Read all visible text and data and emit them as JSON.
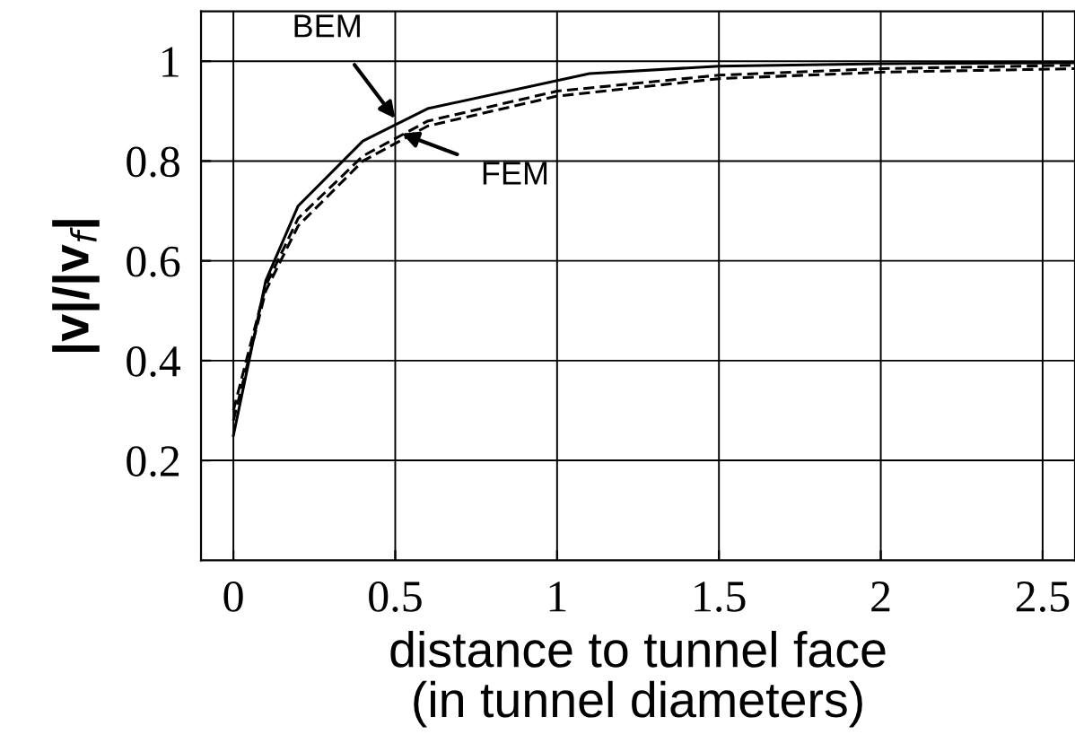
{
  "chart_data": {
    "type": "line",
    "xlabel": "distance to tunnel face\n(in tunnel diameters)",
    "ylabel": "|v|/|v$_{f}$|",
    "series": [
      {
        "color": "#000000",
        "line_style": "solid",
        "x": [
          0,
          0.1,
          0.2,
          0.4,
          0.6,
          1.1,
          1.5,
          2,
          2.6
        ],
        "values": [
          0.25,
          0.56,
          0.71,
          0.84,
          0.905,
          0.975,
          0.99,
          0.995,
          0.997
        ]
      },
      {
        "color": "#000000",
        "line_style": "dashed",
        "x": [
          0,
          0.1,
          0.2,
          0.4,
          0.6,
          1,
          1.5,
          2,
          2.6
        ],
        "values": [
          0.28,
          0.54,
          0.67,
          0.8,
          0.87,
          0.93,
          0.965,
          0.978,
          0.985
        ]
      },
      {
        "color": "#000000",
        "line_style": "dashed",
        "x": [
          0,
          0.1,
          0.2,
          0.4,
          0.6,
          1,
          1.5,
          2,
          2.6
        ],
        "values": [
          0.3,
          0.55,
          0.685,
          0.81,
          0.88,
          0.94,
          0.972,
          0.985,
          0.992
        ]
      }
    ],
    "annotations": [
      {
        "text": "BEM",
        "x": 0.5,
        "y": 0.885
      },
      {
        "text": "FEM",
        "x": 0.52,
        "y": 0.855
      }
    ],
    "xlim": [
      -0.1,
      2.6
    ],
    "ylim": [
      0,
      1.1
    ],
    "xticks": [
      0,
      0.5,
      1,
      1.5,
      2,
      2.5
    ],
    "yticks": [
      0.2,
      0.4,
      0.6,
      0.8,
      1
    ],
    "grid": true,
    "marker": "none"
  }
}
